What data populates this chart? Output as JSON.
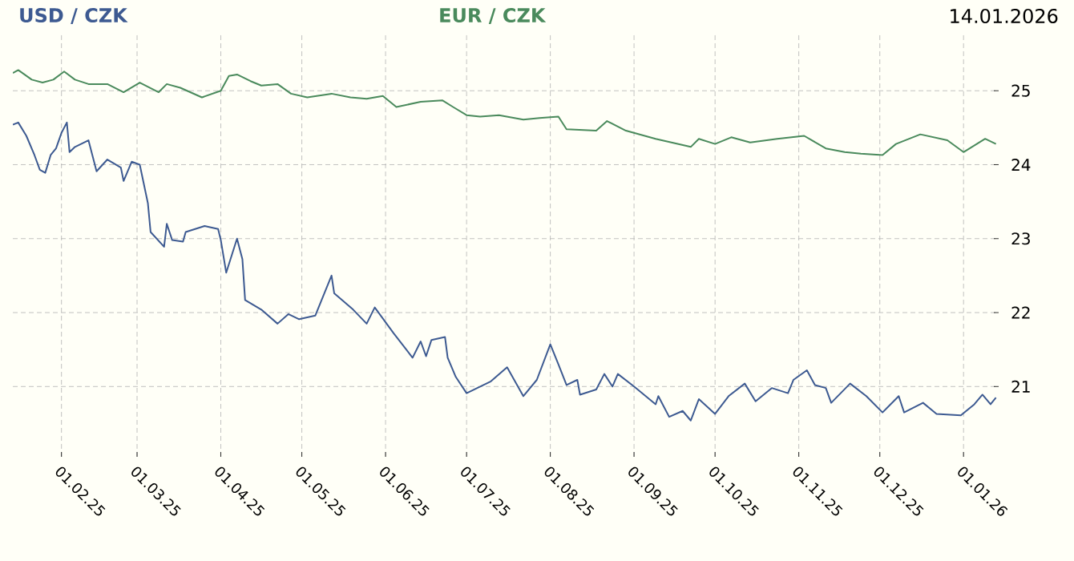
{
  "chart_data": {
    "type": "line",
    "legend": "top",
    "grid": true,
    "annotations": [
      "14.01.2026"
    ],
    "xlim": [
      "2025-01-14",
      "2026-01-14"
    ],
    "xticks": [
      {
        "value": "2025-02-01",
        "label": "01.02.25"
      },
      {
        "value": "2025-03-01",
        "label": "01.03.25"
      },
      {
        "value": "2025-04-01",
        "label": "01.04.25"
      },
      {
        "value": "2025-05-01",
        "label": "01.05.25"
      },
      {
        "value": "2025-06-01",
        "label": "01.06.25"
      },
      {
        "value": "2025-07-01",
        "label": "01.07.25"
      },
      {
        "value": "2025-08-01",
        "label": "01.08.25"
      },
      {
        "value": "2025-09-01",
        "label": "01.09.25"
      },
      {
        "value": "2025-10-01",
        "label": "01.10.25"
      },
      {
        "value": "2025-11-01",
        "label": "01.11.25"
      },
      {
        "value": "2025-12-01",
        "label": "01.12.25"
      },
      {
        "value": "2026-01-01",
        "label": "01.01.26"
      }
    ],
    "ylim": [
      20.05,
      25.75
    ],
    "yticks": [
      21,
      22,
      23,
      24,
      25
    ],
    "series": [
      {
        "name": "USD / CZK",
        "color": "#3d5a91",
        "x": [
          "2025-01-14",
          "2025-01-16",
          "2025-01-19",
          "2025-01-22",
          "2025-01-24",
          "2025-01-26",
          "2025-01-28",
          "2025-01-30",
          "2025-02-01",
          "2025-02-03",
          "2025-02-04",
          "2025-02-06",
          "2025-02-11",
          "2025-02-14",
          "2025-02-18",
          "2025-02-23",
          "2025-02-24",
          "2025-02-27",
          "2025-03-02",
          "2025-03-05",
          "2025-03-06",
          "2025-03-11",
          "2025-03-12",
          "2025-03-14",
          "2025-03-18",
          "2025-03-19",
          "2025-03-26",
          "2025-03-31",
          "2025-04-01",
          "2025-04-03",
          "2025-04-07",
          "2025-04-09",
          "2025-04-10",
          "2025-04-16",
          "2025-04-22",
          "2025-04-26",
          "2025-04-30",
          "2025-05-06",
          "2025-05-12",
          "2025-05-13",
          "2025-05-20",
          "2025-05-25",
          "2025-05-28",
          "2025-06-04",
          "2025-06-11",
          "2025-06-14",
          "2025-06-16",
          "2025-06-18",
          "2025-06-23",
          "2025-06-24",
          "2025-06-27",
          "2025-07-01",
          "2025-07-10",
          "2025-07-16",
          "2025-07-22",
          "2025-07-27",
          "2025-08-01",
          "2025-08-04",
          "2025-08-07",
          "2025-08-11",
          "2025-08-12",
          "2025-08-18",
          "2025-08-21",
          "2025-08-24",
          "2025-08-26",
          "2025-09-01",
          "2025-09-09",
          "2025-09-10",
          "2025-09-14",
          "2025-09-19",
          "2025-09-22",
          "2025-09-25",
          "2025-10-01",
          "2025-10-06",
          "2025-10-12",
          "2025-10-16",
          "2025-10-22",
          "2025-10-28",
          "2025-10-30",
          "2025-11-04",
          "2025-11-07",
          "2025-11-11",
          "2025-11-13",
          "2025-11-20",
          "2025-11-26",
          "2025-12-02",
          "2025-12-08",
          "2025-12-10",
          "2025-12-17",
          "2025-12-22",
          "2025-12-31",
          "2026-01-05",
          "2026-01-08",
          "2026-01-11",
          "2026-01-13"
        ],
        "values": [
          24.54,
          24.57,
          24.39,
          24.13,
          23.93,
          23.89,
          24.13,
          24.22,
          24.43,
          24.57,
          24.17,
          24.24,
          24.33,
          23.91,
          24.07,
          23.96,
          23.78,
          24.04,
          24.0,
          23.48,
          23.09,
          22.89,
          23.2,
          22.98,
          22.96,
          23.09,
          23.17,
          23.13,
          22.98,
          22.54,
          23.0,
          22.72,
          22.17,
          22.04,
          21.85,
          21.98,
          21.91,
          21.96,
          22.5,
          22.26,
          22.04,
          21.85,
          22.07,
          21.72,
          21.39,
          21.61,
          21.41,
          21.63,
          21.67,
          21.39,
          21.13,
          20.91,
          21.07,
          21.26,
          20.87,
          21.09,
          21.57,
          21.3,
          21.02,
          21.09,
          20.89,
          20.96,
          21.17,
          21.0,
          21.17,
          21.0,
          20.76,
          20.87,
          20.59,
          20.67,
          20.54,
          20.83,
          20.63,
          20.87,
          21.04,
          20.8,
          20.98,
          20.91,
          21.09,
          21.22,
          21.02,
          20.98,
          20.78,
          21.04,
          20.87,
          20.65,
          20.87,
          20.65,
          20.78,
          20.63,
          20.61,
          20.76,
          20.89,
          20.76,
          20.85
        ]
      },
      {
        "name": "EUR / CZK",
        "color": "#4a8a5c",
        "x": [
          "2025-01-14",
          "2025-01-16",
          "2025-01-21",
          "2025-01-25",
          "2025-01-29",
          "2025-02-02",
          "2025-02-06",
          "2025-02-11",
          "2025-02-18",
          "2025-02-24",
          "2025-03-02",
          "2025-03-09",
          "2025-03-12",
          "2025-03-17",
          "2025-03-25",
          "2025-04-01",
          "2025-04-04",
          "2025-04-07",
          "2025-04-12",
          "2025-04-16",
          "2025-04-22",
          "2025-04-27",
          "2025-05-03",
          "2025-05-12",
          "2025-05-19",
          "2025-05-25",
          "2025-05-31",
          "2025-06-05",
          "2025-06-14",
          "2025-06-22",
          "2025-06-26",
          "2025-07-01",
          "2025-07-06",
          "2025-07-13",
          "2025-07-22",
          "2025-07-28",
          "2025-08-04",
          "2025-08-07",
          "2025-08-18",
          "2025-08-22",
          "2025-08-29",
          "2025-09-09",
          "2025-09-22",
          "2025-09-25",
          "2025-10-01",
          "2025-10-07",
          "2025-10-14",
          "2025-10-24",
          "2025-11-03",
          "2025-11-11",
          "2025-11-18",
          "2025-11-24",
          "2025-12-02",
          "2025-12-07",
          "2025-12-16",
          "2025-12-26",
          "2026-01-01",
          "2026-01-09",
          "2026-01-13"
        ],
        "values": [
          25.24,
          25.28,
          25.15,
          25.11,
          25.15,
          25.26,
          25.15,
          25.09,
          25.09,
          24.98,
          25.11,
          24.98,
          25.09,
          25.04,
          24.91,
          25.0,
          25.2,
          25.22,
          25.13,
          25.07,
          25.09,
          24.96,
          24.91,
          24.96,
          24.91,
          24.89,
          24.93,
          24.78,
          24.85,
          24.87,
          24.78,
          24.67,
          24.65,
          24.67,
          24.61,
          24.63,
          24.65,
          24.48,
          24.46,
          24.59,
          24.46,
          24.35,
          24.24,
          24.35,
          24.28,
          24.37,
          24.3,
          24.35,
          24.39,
          24.22,
          24.17,
          24.15,
          24.13,
          24.28,
          24.41,
          24.33,
          24.17,
          24.35,
          24.28
        ]
      }
    ]
  }
}
